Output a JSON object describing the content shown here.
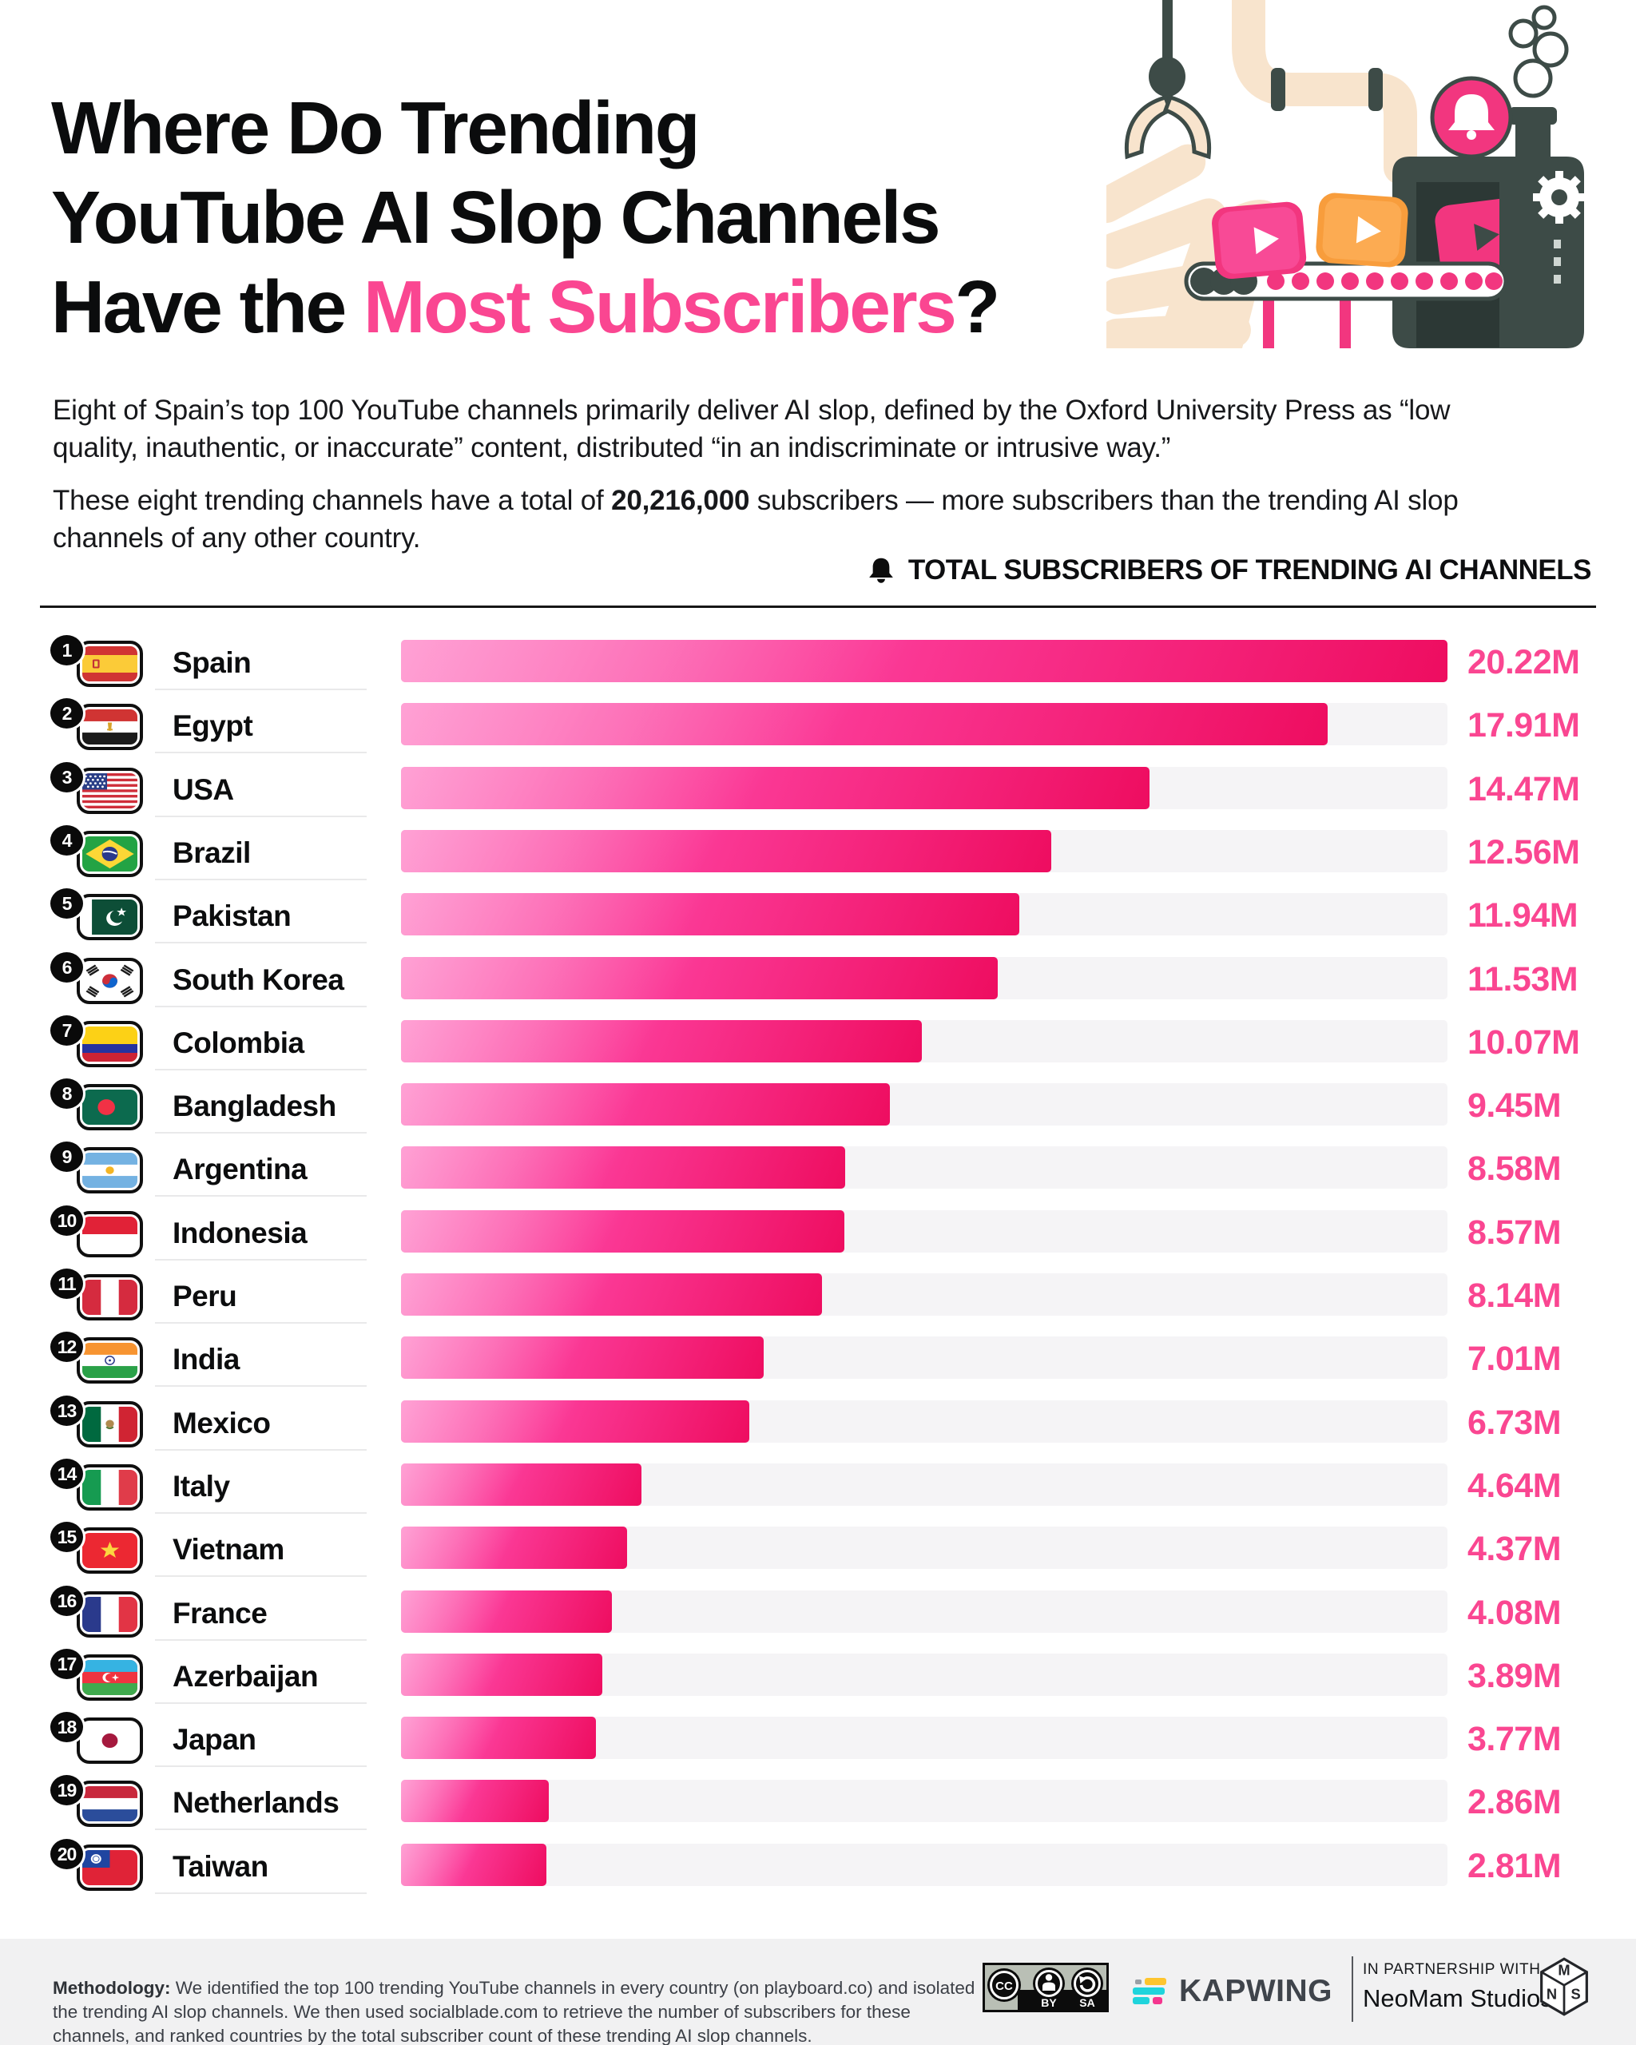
{
  "colors": {
    "accent": "#fa4691",
    "bar_track": "#f5f4f6",
    "bar_gradient": [
      "#ff63b8",
      "#fb3a97",
      "#ee0d60"
    ],
    "machine_dark": "#3d4b47",
    "pipe_beige": "#f8e4cd",
    "illustration_pink": "#f2367f",
    "illustration_orange": "#f89d3c"
  },
  "title": {
    "line1": "Where Do Trending",
    "line2": "YouTube AI Slop Channels",
    "line3_pre": "Have the ",
    "line3_accent": "Most Subscribers",
    "line3_post": "?"
  },
  "intro": {
    "p1_line1": "Eight of Spain’s top 100 YouTube channels primarily deliver AI slop, defined by the Oxford University Press as “low",
    "p1_line2": "quality, inauthentic, or inaccurate” content, distributed “in an indiscriminate or intrusive way.”",
    "p2_line1_pre": "These eight trending channels have a total of ",
    "p2_line1_bold": "20,216,000",
    "p2_line1_post": " subscribers — more subscribers than the trending AI slop",
    "p2_line2": "channels of any other country."
  },
  "chart_header": {
    "icon": "bell-icon",
    "label": "TOTAL SUBSCRIBERS OF TRENDING AI CHANNELS"
  },
  "chart_data": {
    "type": "bar",
    "orientation": "horizontal",
    "title": "Total subscribers of trending AI channels",
    "xlabel": "",
    "ylabel": "",
    "unit": "millions of subscribers",
    "xlim": [
      0,
      20.22
    ],
    "grid": false,
    "legend": "none",
    "rows": [
      {
        "rank": "1",
        "country": "Spain",
        "flag": "es",
        "value": 20.22,
        "label": "20.22M"
      },
      {
        "rank": "2",
        "country": "Egypt",
        "flag": "eg",
        "value": 17.91,
        "label": "17.91M"
      },
      {
        "rank": "3",
        "country": "USA",
        "flag": "us",
        "value": 14.47,
        "label": "14.47M"
      },
      {
        "rank": "4",
        "country": "Brazil",
        "flag": "br",
        "value": 12.56,
        "label": "12.56M"
      },
      {
        "rank": "5",
        "country": "Pakistan",
        "flag": "pk",
        "value": 11.94,
        "label": "11.94M"
      },
      {
        "rank": "6",
        "country": "South Korea",
        "flag": "kr",
        "value": 11.53,
        "label": "11.53M"
      },
      {
        "rank": "7",
        "country": "Colombia",
        "flag": "co",
        "value": 10.07,
        "label": "10.07M"
      },
      {
        "rank": "8",
        "country": "Bangladesh",
        "flag": "bd",
        "value": 9.45,
        "label": "9.45M"
      },
      {
        "rank": "9",
        "country": "Argentina",
        "flag": "ar",
        "value": 8.58,
        "label": "8.58M"
      },
      {
        "rank": "10",
        "country": "Indonesia",
        "flag": "id",
        "value": 8.57,
        "label": "8.57M"
      },
      {
        "rank": "11",
        "country": "Peru",
        "flag": "pe",
        "value": 8.14,
        "label": "8.14M"
      },
      {
        "rank": "12",
        "country": "India",
        "flag": "in",
        "value": 7.01,
        "label": "7.01M"
      },
      {
        "rank": "13",
        "country": "Mexico",
        "flag": "mx",
        "value": 6.73,
        "label": "6.73M"
      },
      {
        "rank": "14",
        "country": "Italy",
        "flag": "it",
        "value": 4.64,
        "label": "4.64M"
      },
      {
        "rank": "15",
        "country": "Vietnam",
        "flag": "vn",
        "value": 4.37,
        "label": "4.37M"
      },
      {
        "rank": "16",
        "country": "France",
        "flag": "fr",
        "value": 4.08,
        "label": "4.08M"
      },
      {
        "rank": "17",
        "country": "Azerbaijan",
        "flag": "az",
        "value": 3.89,
        "label": "3.89M"
      },
      {
        "rank": "18",
        "country": "Japan",
        "flag": "jp",
        "value": 3.77,
        "label": "3.77M"
      },
      {
        "rank": "19",
        "country": "Netherlands",
        "flag": "nl",
        "value": 2.86,
        "label": "2.86M"
      },
      {
        "rank": "20",
        "country": "Taiwan",
        "flag": "tw",
        "value": 2.81,
        "label": "2.81M"
      }
    ]
  },
  "footer": {
    "methodology_label": "Methodology:",
    "methodology_text": " We identified the top 100 trending YouTube channels in every country (on playboard.co) and isolated the trending AI slop channels. We then used socialblade.com to retrieve the number of subscribers for these channels, and ranked countries by the total subscriber count of these trending AI slop channels.",
    "license_cc": "CC",
    "license_by": "BY",
    "license_sa": "SA",
    "brand": "KAPWING",
    "partnership_line1": "IN PARTNERSHIP WITH",
    "partnership_line2": "NeoMam Studios",
    "cube_top": "M",
    "cube_left": "N",
    "cube_right": "S"
  }
}
